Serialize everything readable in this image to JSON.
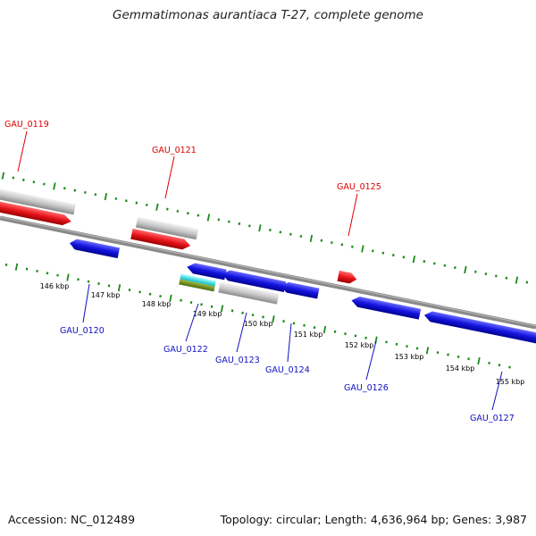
{
  "title": "Gemmatimonas aurantiaca T-27, complete genome",
  "footer": {
    "accession": "Accession: NC_012489",
    "summary": "Topology: circular; Length: 4,636,964 bp; Genes: 3,987"
  },
  "colors": {
    "forward_gene": "#e8141c",
    "reverse_gene": "#1414e0",
    "rna_or_pseudo": "#c8c8c8",
    "forward_label": "#dd0000",
    "reverse_label": "#1010c0",
    "backbone": "#8a8a8a",
    "tick": "#1a8a1a"
  },
  "scale_labels": [
    "146 kbp",
    "147 kbp",
    "148 kbp",
    "149 kbp",
    "150 kbp",
    "151 kbp",
    "152 kbp",
    "153 kbp",
    "154 kbp",
    "155 kbp"
  ],
  "forward_genes": [
    "GAU_0119",
    "GAU_0121",
    "GAU_0125"
  ],
  "reverse_genes": [
    "GAU_0120",
    "GAU_0122",
    "GAU_0123",
    "GAU_0124",
    "GAU_0126",
    "GAU_0127"
  ]
}
